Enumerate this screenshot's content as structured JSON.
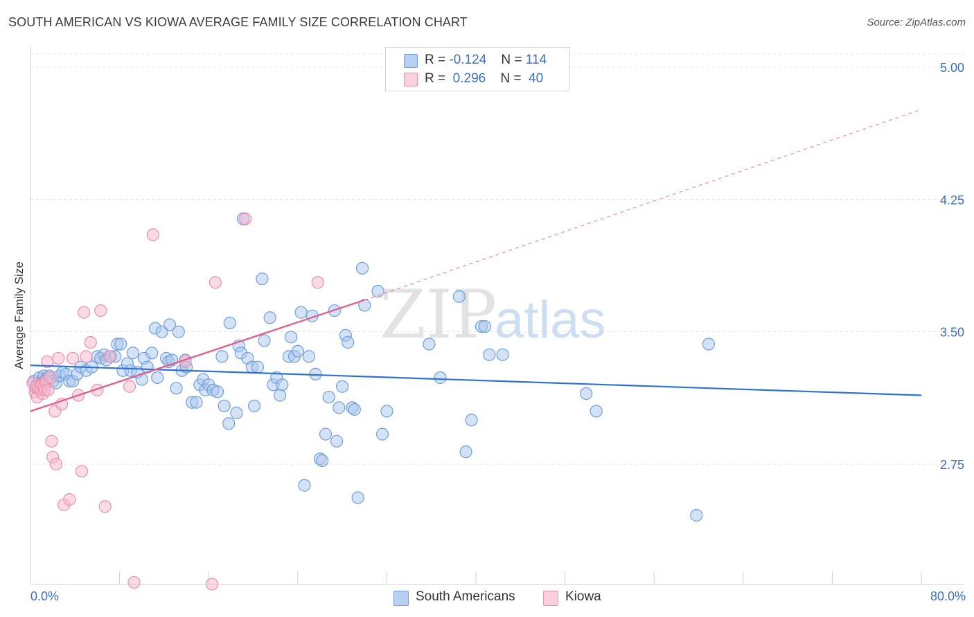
{
  "title": "SOUTH AMERICAN VS KIOWA AVERAGE FAMILY SIZE CORRELATION CHART",
  "source": "Source: ZipAtlas.com",
  "watermark": {
    "zip": "ZIP",
    "atlas": "atlas"
  },
  "legend": {
    "rows": [
      {
        "r_label": "R =",
        "r_value": "-0.124",
        "n_label": "N =",
        "n_value": "114"
      },
      {
        "r_label": "R =",
        "r_value": "0.296",
        "n_label": "N =",
        "n_value": "40"
      }
    ]
  },
  "bottom_legend": [
    "South Americans",
    "Kiowa"
  ],
  "colors": {
    "blue_fill": "#a9c6ee",
    "blue_stroke": "#6e9fdc",
    "blue_line": "#2f72cc",
    "pink_fill": "#f6b8cb",
    "pink_stroke": "#ec8fac",
    "pink_line": "#e0608f",
    "accent_text": "#3a6fc4"
  },
  "chart_data": {
    "type": "scatter",
    "title": "SOUTH AMERICAN VS KIOWA AVERAGE FAMILY SIZE CORRELATION CHART",
    "xlabel": "",
    "ylabel": "Average Family Size",
    "xlim": [
      0,
      80
    ],
    "ylim": [
      2.0,
      5.1
    ],
    "x_tick_labels": [
      "0.0%",
      "80.0%"
    ],
    "y_ticks": [
      2.75,
      3.5,
      4.25,
      5.0
    ],
    "y_tick_labels": [
      "2.75",
      "3.50",
      "4.25",
      "5.00"
    ],
    "grid": true,
    "series": [
      {
        "name": "South Americans",
        "r": -0.124,
        "n": 114,
        "trend": {
          "x0": 0,
          "y0": 3.31,
          "x1": 80,
          "y1": 3.14
        },
        "points": [
          [
            0.3,
            3.22
          ],
          [
            0.5,
            3.18
          ],
          [
            0.6,
            3.2
          ],
          [
            0.8,
            3.24
          ],
          [
            0.9,
            3.19
          ],
          [
            1.0,
            3.21
          ],
          [
            1.1,
            3.23
          ],
          [
            1.2,
            3.25
          ],
          [
            1.3,
            3.22
          ],
          [
            1.5,
            3.24
          ],
          [
            1.7,
            3.25
          ],
          [
            2.0,
            3.22
          ],
          [
            2.3,
            3.21
          ],
          [
            2.6,
            3.25
          ],
          [
            2.9,
            3.27
          ],
          [
            3.2,
            3.26
          ],
          [
            3.5,
            3.22
          ],
          [
            3.8,
            3.22
          ],
          [
            4.2,
            3.26
          ],
          [
            4.5,
            3.3
          ],
          [
            5.0,
            3.28
          ],
          [
            5.5,
            3.3
          ],
          [
            6.0,
            3.36
          ],
          [
            6.3,
            3.35
          ],
          [
            6.6,
            3.37
          ],
          [
            6.8,
            3.34
          ],
          [
            7.2,
            3.36
          ],
          [
            7.6,
            3.36
          ],
          [
            7.8,
            3.43
          ],
          [
            8.1,
            3.43
          ],
          [
            8.3,
            3.28
          ],
          [
            8.7,
            3.32
          ],
          [
            9.0,
            3.28
          ],
          [
            9.2,
            3.38
          ],
          [
            9.6,
            3.27
          ],
          [
            10.0,
            3.23
          ],
          [
            10.2,
            3.35
          ],
          [
            10.5,
            3.3
          ],
          [
            10.9,
            3.38
          ],
          [
            11.2,
            3.52
          ],
          [
            11.4,
            3.24
          ],
          [
            11.8,
            3.5
          ],
          [
            12.2,
            3.35
          ],
          [
            12.4,
            3.33
          ],
          [
            12.5,
            3.54
          ],
          [
            12.7,
            3.34
          ],
          [
            13.1,
            3.18
          ],
          [
            13.3,
            3.5
          ],
          [
            13.6,
            3.28
          ],
          [
            13.9,
            3.34
          ],
          [
            14.0,
            3.3
          ],
          [
            14.5,
            3.1
          ],
          [
            14.9,
            3.1
          ],
          [
            15.2,
            3.2
          ],
          [
            15.5,
            3.23
          ],
          [
            15.7,
            3.17
          ],
          [
            16.0,
            3.2
          ],
          [
            16.4,
            3.17
          ],
          [
            16.8,
            3.16
          ],
          [
            17.2,
            3.36
          ],
          [
            17.4,
            3.08
          ],
          [
            17.8,
            2.98
          ],
          [
            17.9,
            3.55
          ],
          [
            18.5,
            3.04
          ],
          [
            18.7,
            3.42
          ],
          [
            18.9,
            3.38
          ],
          [
            19.1,
            4.14
          ],
          [
            19.5,
            3.35
          ],
          [
            19.9,
            3.3
          ],
          [
            20.1,
            3.08
          ],
          [
            20.4,
            3.3
          ],
          [
            20.8,
            3.8
          ],
          [
            21.0,
            3.45
          ],
          [
            21.5,
            3.58
          ],
          [
            21.8,
            3.2
          ],
          [
            22.1,
            3.24
          ],
          [
            22.4,
            3.14
          ],
          [
            22.6,
            3.2
          ],
          [
            23.2,
            3.36
          ],
          [
            23.4,
            3.47
          ],
          [
            23.7,
            3.36
          ],
          [
            24.0,
            3.39
          ],
          [
            24.3,
            3.61
          ],
          [
            24.6,
            2.63
          ],
          [
            25.3,
            3.59
          ],
          [
            25.0,
            3.36
          ],
          [
            25.6,
            3.26
          ],
          [
            26.0,
            2.78
          ],
          [
            26.2,
            2.77
          ],
          [
            26.5,
            2.92
          ],
          [
            26.8,
            3.13
          ],
          [
            27.3,
            3.62
          ],
          [
            27.5,
            2.88
          ],
          [
            27.7,
            3.07
          ],
          [
            28.0,
            3.19
          ],
          [
            28.3,
            3.48
          ],
          [
            28.5,
            3.44
          ],
          [
            28.9,
            3.07
          ],
          [
            29.1,
            3.06
          ],
          [
            29.4,
            2.56
          ],
          [
            29.8,
            3.86
          ],
          [
            30.0,
            3.65
          ],
          [
            31.2,
            3.73
          ],
          [
            31.6,
            2.92
          ],
          [
            32.0,
            3.05
          ],
          [
            35.8,
            3.43
          ],
          [
            36.8,
            3.24
          ],
          [
            38.5,
            3.7
          ],
          [
            39.1,
            2.82
          ],
          [
            39.6,
            3.0
          ],
          [
            40.5,
            3.53
          ],
          [
            40.8,
            3.53
          ],
          [
            41.2,
            3.37
          ],
          [
            42.4,
            3.37
          ],
          [
            49.9,
            3.15
          ],
          [
            50.8,
            3.05
          ],
          [
            60.9,
            3.43
          ],
          [
            59.8,
            2.46
          ]
        ]
      },
      {
        "name": "Kiowa",
        "r": 0.296,
        "n": 40,
        "trend": {
          "x0": 0,
          "y0": 3.05,
          "x1": 30,
          "y1": 3.68,
          "extend_to_x": 80,
          "extend_to_y": 4.76
        },
        "points": [
          [
            0.2,
            3.21
          ],
          [
            0.4,
            3.16
          ],
          [
            0.5,
            3.19
          ],
          [
            0.6,
            3.13
          ],
          [
            0.7,
            3.18
          ],
          [
            0.9,
            3.17
          ],
          [
            1.0,
            3.2
          ],
          [
            1.1,
            3.15
          ],
          [
            1.2,
            3.19
          ],
          [
            1.3,
            3.17
          ],
          [
            1.4,
            3.22
          ],
          [
            1.5,
            3.33
          ],
          [
            1.6,
            3.17
          ],
          [
            1.8,
            3.24
          ],
          [
            1.9,
            2.88
          ],
          [
            2.0,
            2.79
          ],
          [
            2.2,
            3.05
          ],
          [
            2.3,
            2.75
          ],
          [
            2.5,
            3.35
          ],
          [
            2.8,
            3.09
          ],
          [
            3.0,
            2.52
          ],
          [
            3.5,
            2.55
          ],
          [
            3.8,
            3.35
          ],
          [
            4.3,
            3.14
          ],
          [
            4.6,
            2.71
          ],
          [
            4.8,
            3.61
          ],
          [
            5.0,
            3.36
          ],
          [
            5.4,
            3.44
          ],
          [
            6.0,
            3.17
          ],
          [
            6.3,
            3.62
          ],
          [
            6.7,
            2.51
          ],
          [
            7.1,
            3.36
          ],
          [
            8.9,
            3.19
          ],
          [
            9.3,
            2.08
          ],
          [
            11.0,
            4.05
          ],
          [
            13.9,
            3.33
          ],
          [
            16.3,
            2.07
          ],
          [
            16.6,
            3.78
          ],
          [
            19.3,
            4.14
          ],
          [
            25.8,
            3.78
          ]
        ]
      }
    ]
  }
}
